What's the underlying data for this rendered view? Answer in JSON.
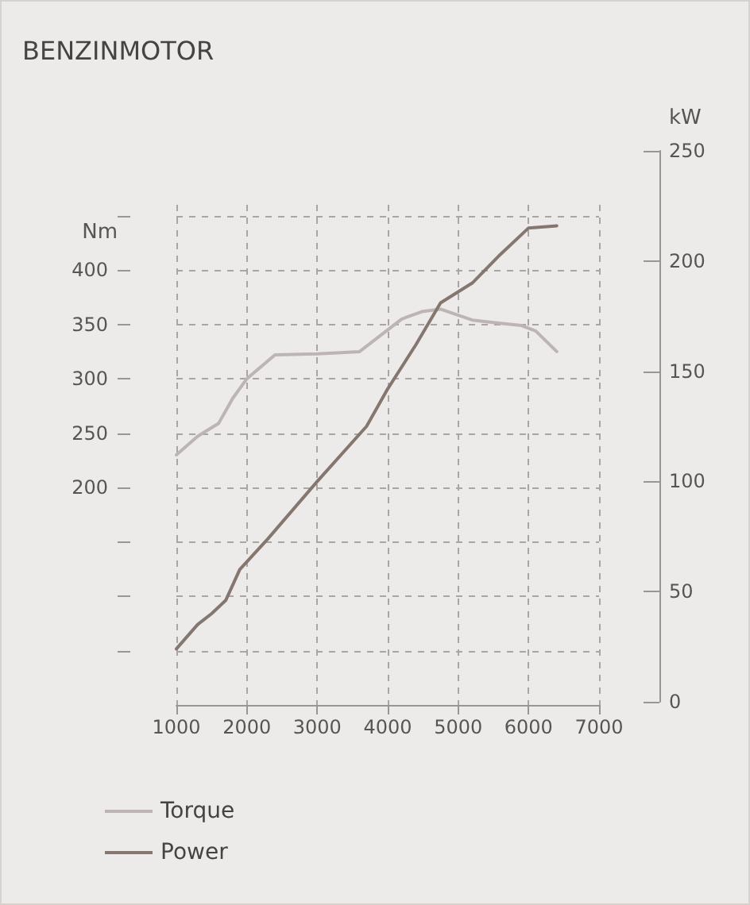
{
  "chart_data": {
    "type": "line",
    "title": "BENZINMOTOR",
    "ylabel": "Nm",
    "y2label": "kW",
    "x": [
      1000,
      1300,
      1600,
      1800,
      2000,
      2400,
      3000,
      3600,
      3900,
      4200,
      4500,
      4750,
      5200,
      5600,
      5900,
      6100,
      6400
    ],
    "series": [
      {
        "name": "Torque",
        "color": "#bdb5b3",
        "values": [
          230,
          247,
          259,
          282,
          300,
          322,
          323,
          325,
          340,
          355,
          362,
          364,
          354,
          351,
          349,
          344,
          325
        ]
      },
      {
        "name": "Power",
        "color": "#857670",
        "axis": "y2",
        "x": [
          1000,
          1300,
          1500,
          1700,
          1900,
          2300,
          3000,
          3700,
          4000,
          4400,
          4750,
          5200,
          5600,
          6000,
          6400
        ],
        "values": [
          24,
          35,
          40,
          46,
          60,
          74,
          100,
          125,
          142,
          162,
          181,
          190,
          203,
          215,
          216
        ]
      }
    ],
    "xlim": [
      1000,
      7000
    ],
    "xticks": [
      1000,
      2000,
      3000,
      4000,
      5000,
      6000,
      7000
    ],
    "ylim": [
      0,
      460
    ],
    "yticks": [
      {
        "value": 50,
        "label": null
      },
      {
        "value": 100,
        "label": null
      },
      {
        "value": 150,
        "label": null
      },
      200,
      250,
      300,
      350,
      400,
      {
        "value": 450,
        "label": null
      }
    ],
    "y2lim": [
      0,
      250
    ],
    "y2ticks": [
      0,
      50,
      100,
      150,
      200,
      250
    ],
    "grid": true,
    "legend": "bottom left",
    "marker": "none",
    "line_style": "solid"
  }
}
